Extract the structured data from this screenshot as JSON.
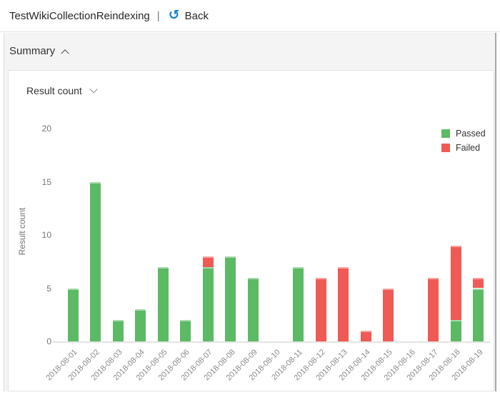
{
  "header": {
    "title": "TestWikiCollectionReindexing",
    "separator": "|",
    "back_label": "Back",
    "back_glyph": "↺"
  },
  "summary": {
    "label": "Summary"
  },
  "widget": {
    "dropdown_label": "Result count"
  },
  "colors": {
    "passed": "#5cba64",
    "failed": "#f05a55",
    "back_icon": "#1484d7",
    "axis_line": "#e4e4e4"
  },
  "chart_data": {
    "type": "bar",
    "stacked": true,
    "title": "",
    "xlabel": "",
    "ylabel": "Result count",
    "ylim": [
      0,
      20
    ],
    "yticks": [
      0,
      5,
      10,
      15,
      20
    ],
    "grid": false,
    "legend_position": "top-right",
    "categories": [
      "2018-08-01",
      "2018-08-02",
      "2018-08-03",
      "2018-08-04",
      "2018-08-05",
      "2018-08-06",
      "2018-08-07",
      "2018-08-08",
      "2018-08-09",
      "2018-08-10",
      "2018-08-11",
      "2018-08-12",
      "2018-08-13",
      "2018-08-14",
      "2018-08-15",
      "2018-08-16",
      "2018-08-17",
      "2018-08-18",
      "2018-08-19"
    ],
    "series": [
      {
        "name": "Passed",
        "color": "#5cba64",
        "values": [
          5,
          15,
          2,
          3,
          7,
          2,
          7,
          8,
          6,
          0,
          7,
          0,
          0,
          0,
          0,
          0,
          0,
          2,
          5
        ]
      },
      {
        "name": "Failed",
        "color": "#f05a55",
        "values": [
          0,
          0,
          0,
          0,
          0,
          0,
          1,
          0,
          0,
          0,
          0,
          6,
          7,
          1,
          5,
          0,
          6,
          7,
          1
        ]
      }
    ]
  }
}
